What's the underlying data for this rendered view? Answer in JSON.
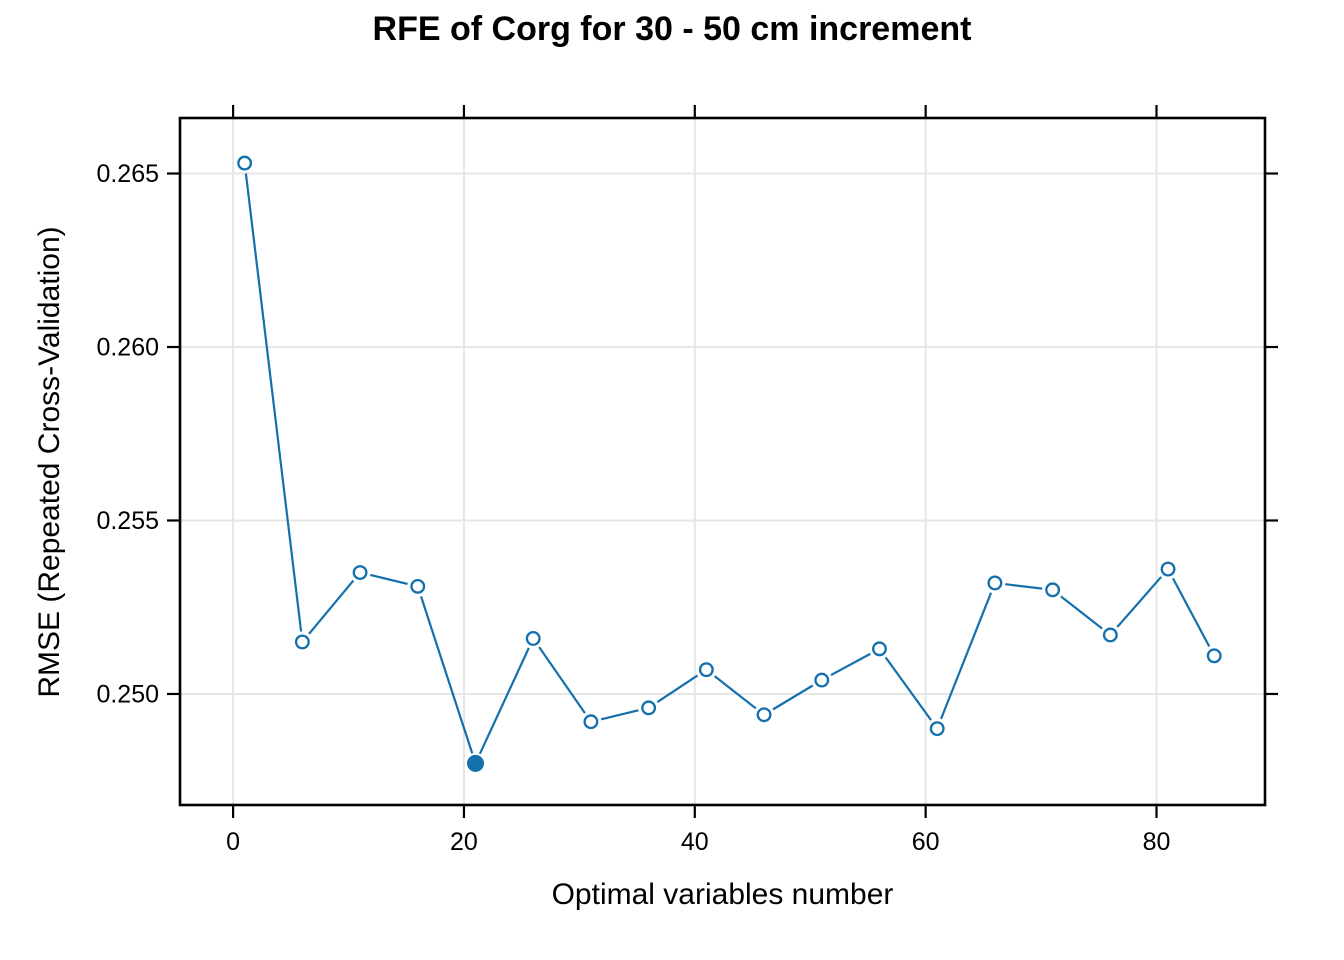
{
  "figure": {
    "background": "#FFFFFF"
  },
  "chart_data": {
    "type": "line",
    "title": "RFE of Corg for 30 - 50 cm increment",
    "xlabel": "Optimal variables number",
    "ylabel": "RMSE (Repeated Cross-Validation)",
    "x": [
      1,
      6,
      11,
      16,
      21,
      26,
      31,
      36,
      41,
      46,
      51,
      56,
      61,
      66,
      71,
      76,
      81,
      85
    ],
    "y": [
      0.2653,
      0.2515,
      0.2535,
      0.2531,
      0.248,
      0.2516,
      0.2492,
      0.2496,
      0.2507,
      0.2494,
      0.2504,
      0.2513,
      0.249,
      0.2532,
      0.253,
      0.2517,
      0.2536,
      0.2511
    ],
    "best_point": {
      "x": 21,
      "y": 0.248,
      "marker": "filled-circle"
    },
    "marker": "open-circle",
    "line_color": "#1470AC",
    "grid_color": "#E6E6E6",
    "axis_color": "#000000",
    "x_ticks": [
      0,
      20,
      40,
      60,
      80
    ],
    "x_tick_labels": [
      "0",
      "20",
      "40",
      "60",
      "80"
    ],
    "y_ticks": [
      0.25,
      0.255,
      0.26,
      0.265
    ],
    "y_tick_labels": [
      "0.250",
      "0.255",
      "0.260",
      "0.265"
    ],
    "x_range": [
      -4.6,
      89.4
    ],
    "y_range": [
      0.2468,
      0.2666
    ],
    "grid": true,
    "legend": "none"
  }
}
